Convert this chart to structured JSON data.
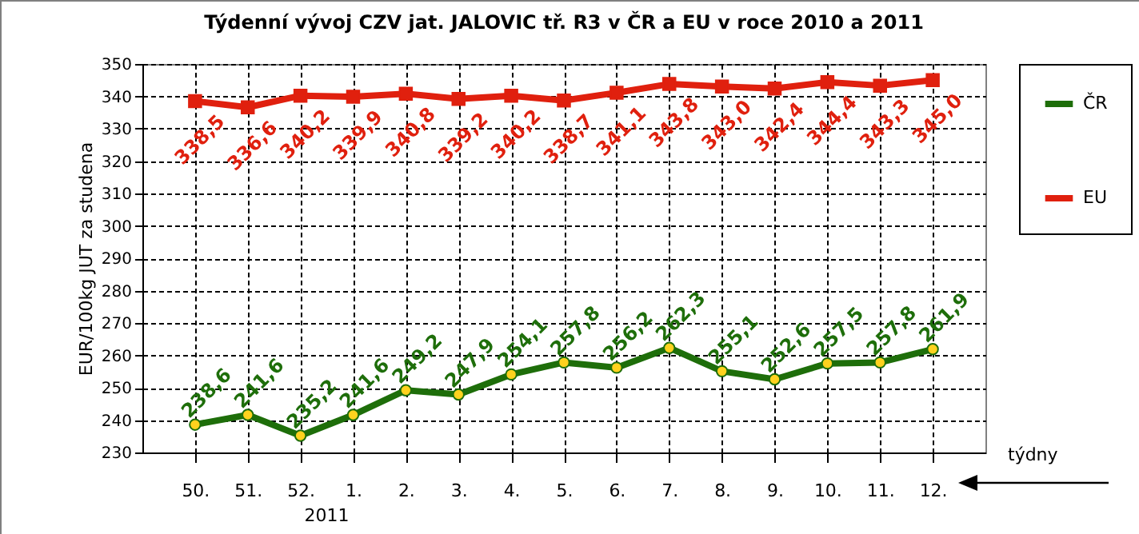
{
  "chart_data": {
    "type": "line",
    "title": "Týdenní vývoj CZV jat. JALOVIC tř. R3  v ČR a EU v roce 2010 a 2011",
    "ylabel": "EUR/100kg JUT za studena",
    "categories": [
      "50.",
      "51.",
      "52.",
      "1.",
      "2.",
      "3.",
      "4.",
      "5.",
      "6.",
      "7.",
      "8.",
      "9.",
      "10.",
      "11.",
      "12."
    ],
    "series": [
      {
        "name": "ČR",
        "color": "#1e6e0a",
        "marker": "circle",
        "values": [
          238.6,
          241.6,
          235.2,
          241.6,
          249.2,
          247.9,
          254.1,
          257.8,
          256.2,
          262.3,
          255.1,
          252.6,
          257.5,
          257.8,
          261.9
        ],
        "value_labels": [
          "238,6",
          "241,6",
          "235,2",
          "241,6",
          "249,2",
          "247,9",
          "254,1",
          "257,8",
          "256,2",
          "262,3",
          "255,1",
          "252,6",
          "257,5",
          "257,8",
          "261,9"
        ]
      },
      {
        "name": "EU",
        "color": "#e0200e",
        "marker": "square",
        "values": [
          338.5,
          336.6,
          340.2,
          339.9,
          340.8,
          339.2,
          340.2,
          338.7,
          341.1,
          343.8,
          343.0,
          342.4,
          344.4,
          343.3,
          345.0
        ],
        "value_labels": [
          "338,5",
          "336,6",
          "340,2",
          "339,9",
          "340,8",
          "339,2",
          "340,2",
          "338,7",
          "341,1",
          "343,8",
          "343,0",
          "342,4",
          "344,4",
          "343,3",
          "345,0"
        ]
      }
    ],
    "ylim": [
      230,
      350
    ],
    "yticks": [
      230,
      240,
      250,
      260,
      270,
      280,
      290,
      300,
      310,
      320,
      330,
      340,
      350
    ],
    "grid": true,
    "legend": "right",
    "line_style": "solid",
    "annotations": [
      "2011",
      "týdny"
    ]
  }
}
